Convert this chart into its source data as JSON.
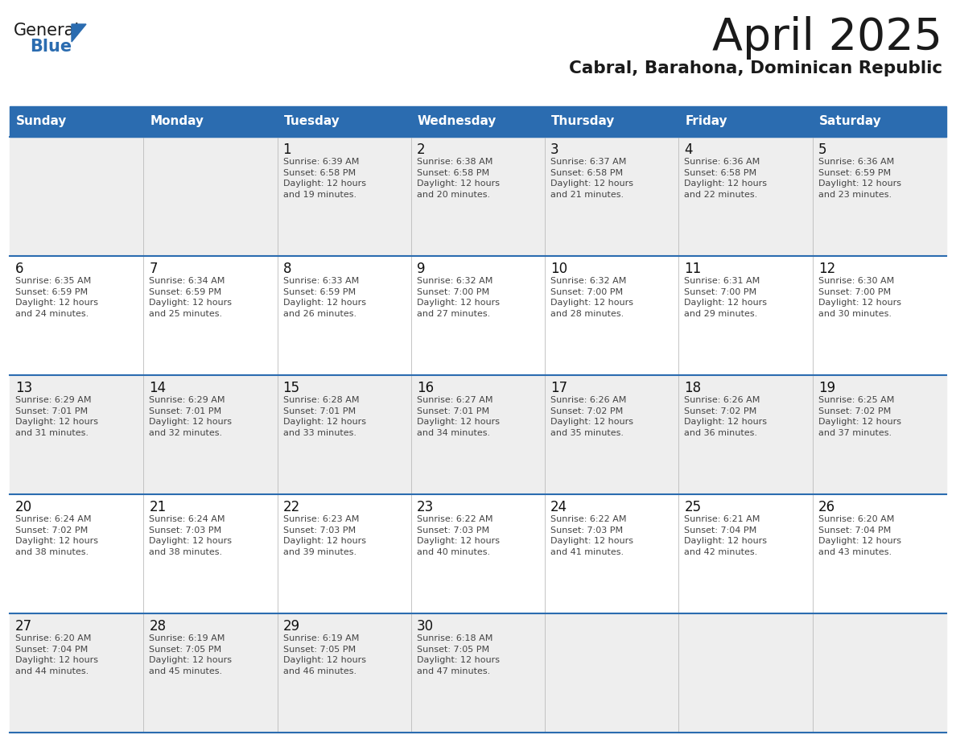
{
  "title": "April 2025",
  "subtitle": "Cabral, Barahona, Dominican Republic",
  "header_bg_color": "#2B6CB0",
  "header_text_color": "#FFFFFF",
  "cell_bg_color_odd": "#EEEEEE",
  "cell_bg_color_even": "#FFFFFF",
  "title_color": "#1a1a1a",
  "subtitle_color": "#1a1a1a",
  "day_names": [
    "Sunday",
    "Monday",
    "Tuesday",
    "Wednesday",
    "Thursday",
    "Friday",
    "Saturday"
  ],
  "grid_line_color": "#2B6CB0",
  "cell_text_color": "#444444",
  "day_number_color": "#111111",
  "calendar": [
    [
      null,
      null,
      {
        "day": 1,
        "sunrise": "6:39 AM",
        "sunset": "6:58 PM",
        "daylight": "12 hours and 19 minutes."
      },
      {
        "day": 2,
        "sunrise": "6:38 AM",
        "sunset": "6:58 PM",
        "daylight": "12 hours and 20 minutes."
      },
      {
        "day": 3,
        "sunrise": "6:37 AM",
        "sunset": "6:58 PM",
        "daylight": "12 hours and 21 minutes."
      },
      {
        "day": 4,
        "sunrise": "6:36 AM",
        "sunset": "6:58 PM",
        "daylight": "12 hours and 22 minutes."
      },
      {
        "day": 5,
        "sunrise": "6:36 AM",
        "sunset": "6:59 PM",
        "daylight": "12 hours and 23 minutes."
      }
    ],
    [
      {
        "day": 6,
        "sunrise": "6:35 AM",
        "sunset": "6:59 PM",
        "daylight": "12 hours and 24 minutes."
      },
      {
        "day": 7,
        "sunrise": "6:34 AM",
        "sunset": "6:59 PM",
        "daylight": "12 hours and 25 minutes."
      },
      {
        "day": 8,
        "sunrise": "6:33 AM",
        "sunset": "6:59 PM",
        "daylight": "12 hours and 26 minutes."
      },
      {
        "day": 9,
        "sunrise": "6:32 AM",
        "sunset": "7:00 PM",
        "daylight": "12 hours and 27 minutes."
      },
      {
        "day": 10,
        "sunrise": "6:32 AM",
        "sunset": "7:00 PM",
        "daylight": "12 hours and 28 minutes."
      },
      {
        "day": 11,
        "sunrise": "6:31 AM",
        "sunset": "7:00 PM",
        "daylight": "12 hours and 29 minutes."
      },
      {
        "day": 12,
        "sunrise": "6:30 AM",
        "sunset": "7:00 PM",
        "daylight": "12 hours and 30 minutes."
      }
    ],
    [
      {
        "day": 13,
        "sunrise": "6:29 AM",
        "sunset": "7:01 PM",
        "daylight": "12 hours and 31 minutes."
      },
      {
        "day": 14,
        "sunrise": "6:29 AM",
        "sunset": "7:01 PM",
        "daylight": "12 hours and 32 minutes."
      },
      {
        "day": 15,
        "sunrise": "6:28 AM",
        "sunset": "7:01 PM",
        "daylight": "12 hours and 33 minutes."
      },
      {
        "day": 16,
        "sunrise": "6:27 AM",
        "sunset": "7:01 PM",
        "daylight": "12 hours and 34 minutes."
      },
      {
        "day": 17,
        "sunrise": "6:26 AM",
        "sunset": "7:02 PM",
        "daylight": "12 hours and 35 minutes."
      },
      {
        "day": 18,
        "sunrise": "6:26 AM",
        "sunset": "7:02 PM",
        "daylight": "12 hours and 36 minutes."
      },
      {
        "day": 19,
        "sunrise": "6:25 AM",
        "sunset": "7:02 PM",
        "daylight": "12 hours and 37 minutes."
      }
    ],
    [
      {
        "day": 20,
        "sunrise": "6:24 AM",
        "sunset": "7:02 PM",
        "daylight": "12 hours and 38 minutes."
      },
      {
        "day": 21,
        "sunrise": "6:24 AM",
        "sunset": "7:03 PM",
        "daylight": "12 hours and 38 minutes."
      },
      {
        "day": 22,
        "sunrise": "6:23 AM",
        "sunset": "7:03 PM",
        "daylight": "12 hours and 39 minutes."
      },
      {
        "day": 23,
        "sunrise": "6:22 AM",
        "sunset": "7:03 PM",
        "daylight": "12 hours and 40 minutes."
      },
      {
        "day": 24,
        "sunrise": "6:22 AM",
        "sunset": "7:03 PM",
        "daylight": "12 hours and 41 minutes."
      },
      {
        "day": 25,
        "sunrise": "6:21 AM",
        "sunset": "7:04 PM",
        "daylight": "12 hours and 42 minutes."
      },
      {
        "day": 26,
        "sunrise": "6:20 AM",
        "sunset": "7:04 PM",
        "daylight": "12 hours and 43 minutes."
      }
    ],
    [
      {
        "day": 27,
        "sunrise": "6:20 AM",
        "sunset": "7:04 PM",
        "daylight": "12 hours and 44 minutes."
      },
      {
        "day": 28,
        "sunrise": "6:19 AM",
        "sunset": "7:05 PM",
        "daylight": "12 hours and 45 minutes."
      },
      {
        "day": 29,
        "sunrise": "6:19 AM",
        "sunset": "7:05 PM",
        "daylight": "12 hours and 46 minutes."
      },
      {
        "day": 30,
        "sunrise": "6:18 AM",
        "sunset": "7:05 PM",
        "daylight": "12 hours and 47 minutes."
      },
      null,
      null,
      null
    ]
  ],
  "fig_width": 11.88,
  "fig_height": 9.18,
  "dpi": 100
}
